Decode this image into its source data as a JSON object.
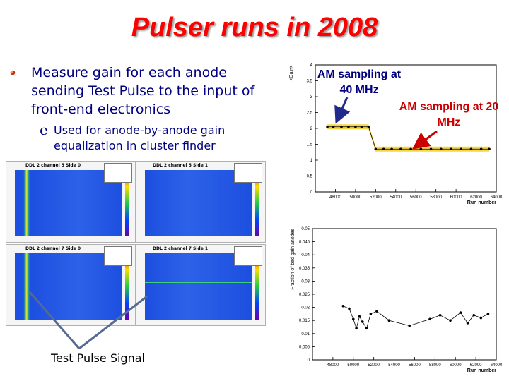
{
  "slide": {
    "title": "Pulser runs in 2008",
    "bullet_text": "Measure gain for each anode sending Test Pulse to the input of front-end electronics",
    "sub_bullet_glyph": "e",
    "sub_bullet_text": "Used for anode-by-anode gain equalization in cluster finder",
    "caption": "Test Pulse Signal",
    "label_40": "AM sampling at 40 MHz",
    "label_20": "AM sampling at 20 MHz",
    "colors": {
      "title": "#ff0000",
      "text": "#000080",
      "accent_red": "#cc0000",
      "band": "#f5d020"
    }
  },
  "panels": [
    {
      "title": "DDL 2 channel 5 Side 0"
    },
    {
      "title": "DDL 2 channel 5 Side 1"
    },
    {
      "title": "DDL 2 channel 7 Side 0"
    },
    {
      "title": "DDL 2 channel 7 Side 1"
    }
  ],
  "chart_data": [
    {
      "type": "line",
      "ylabel": "<Gain>",
      "xlabel": "Run number",
      "xlim": [
        46000,
        64000
      ],
      "ylim": [
        0,
        4
      ],
      "xticks": [
        "48000",
        "50000",
        "52000",
        "54000",
        "56000",
        "58000",
        "60000",
        "62000",
        "64000"
      ],
      "yticks": [
        "0",
        "0.5",
        "1",
        "1.5",
        "2",
        "2.5",
        "3",
        "3.5",
        "4"
      ],
      "x": [
        47200,
        47800,
        48600,
        49300,
        50000,
        50600,
        51300,
        52000,
        52800,
        53600,
        54500,
        55500,
        56500,
        57500,
        58500,
        59500,
        60500,
        61500,
        62500,
        63300
      ],
      "y": [
        2.05,
        2.05,
        2.05,
        2.05,
        2.05,
        2.05,
        2.05,
        1.35,
        1.35,
        1.35,
        1.35,
        1.35,
        1.35,
        1.35,
        1.35,
        1.35,
        1.35,
        1.35,
        1.35,
        1.35
      ]
    },
    {
      "type": "line",
      "ylabel": "Fraction of bad gain anodes",
      "xlabel": "Run number",
      "xlim": [
        46000,
        64000
      ],
      "ylim": [
        0,
        0.05
      ],
      "xticks": [
        "48000",
        "50000",
        "52000",
        "54000",
        "56000",
        "58000",
        "60000",
        "62000",
        "64000"
      ],
      "yticks": [
        "0",
        "0.005",
        "0.01",
        "0.015",
        "0.02",
        "0.025",
        "0.03",
        "0.035",
        "0.04",
        "0.045",
        "0.05"
      ],
      "x": [
        49000,
        49600,
        50000,
        50300,
        50600,
        50900,
        51300,
        51700,
        52300,
        53500,
        55500,
        57500,
        58500,
        59500,
        60500,
        61200,
        61800,
        62500,
        63200
      ],
      "y": [
        0.0205,
        0.0195,
        0.0155,
        0.012,
        0.0165,
        0.0145,
        0.012,
        0.0175,
        0.0185,
        0.015,
        0.013,
        0.0155,
        0.017,
        0.015,
        0.018,
        0.014,
        0.017,
        0.016,
        0.0175
      ]
    }
  ]
}
